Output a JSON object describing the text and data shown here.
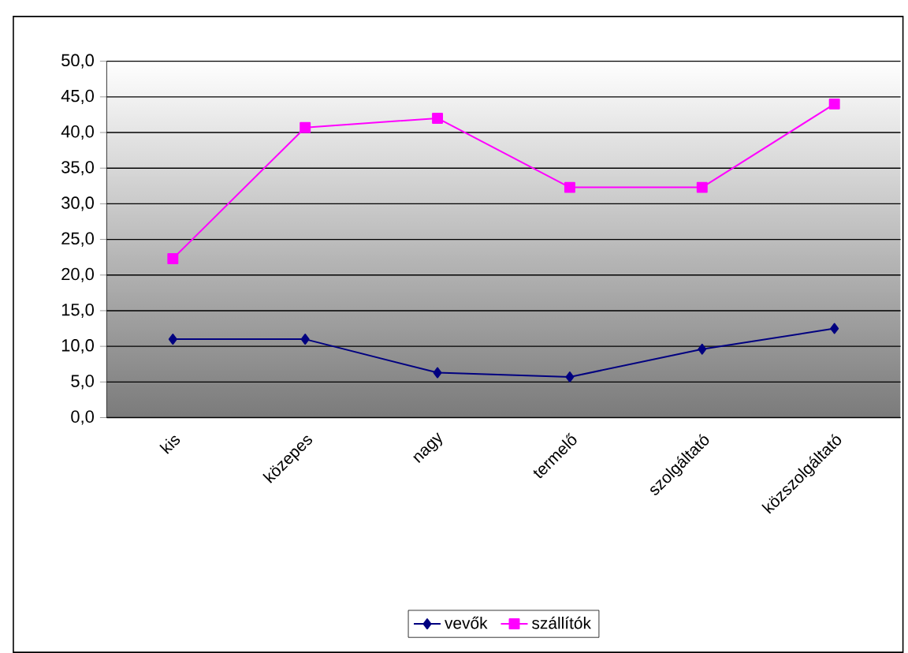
{
  "chart_data": {
    "type": "line",
    "categories": [
      "kis",
      "közepes",
      "nagy",
      "termelő",
      "szolgáltató",
      "közszolgáltató"
    ],
    "series": [
      {
        "name": "vevők",
        "color": "#000080",
        "marker": "diamond",
        "values": [
          11.0,
          11.0,
          6.3,
          5.7,
          9.6,
          12.5
        ]
      },
      {
        "name": "szállítók",
        "color": "#ff00ff",
        "marker": "square",
        "values": [
          22.3,
          40.7,
          42.0,
          32.3,
          32.3,
          44.0
        ]
      }
    ],
    "ylim": [
      0,
      50
    ],
    "yticks": [
      {
        "value": 0,
        "label": "0,0"
      },
      {
        "value": 5,
        "label": "5,0"
      },
      {
        "value": 10,
        "label": "10,0"
      },
      {
        "value": 15,
        "label": "15,0"
      },
      {
        "value": 20,
        "label": "20,0"
      },
      {
        "value": 25,
        "label": "25,0"
      },
      {
        "value": 30,
        "label": "30,0"
      },
      {
        "value": 35,
        "label": "35,0"
      },
      {
        "value": 40,
        "label": "40,0"
      },
      {
        "value": 45,
        "label": "45,0"
      },
      {
        "value": 50,
        "label": "50,0"
      }
    ],
    "grid": "y",
    "legend": "bottom"
  }
}
